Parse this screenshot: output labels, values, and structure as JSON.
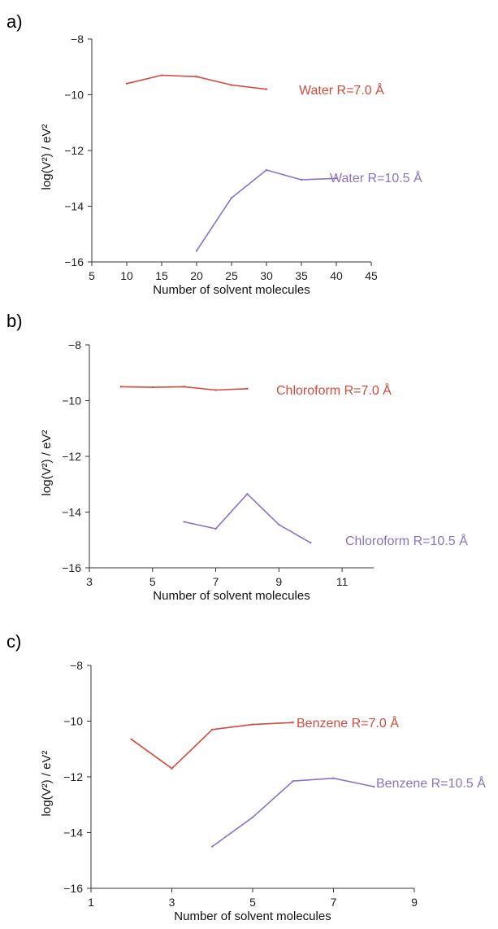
{
  "chart_data": [
    {
      "panel_label": "a)",
      "type": "line",
      "xlabel": "Number of solvent molecules",
      "ylabel": "log(V²) / eV²",
      "xlim": [
        5,
        45
      ],
      "ylim": [
        -16,
        -8
      ],
      "xticks": [
        "5",
        "10",
        "15",
        "20",
        "25",
        "30",
        "35",
        "40",
        "45"
      ],
      "yticks": [
        "-16",
        "-14",
        "-12",
        "-10",
        "-8"
      ],
      "grid": false,
      "series": [
        {
          "name": "Water R=7.0 Å",
          "color": "#d24b3e",
          "x": [
            10,
            15,
            20,
            25,
            30
          ],
          "y": [
            -9.6,
            -9.3,
            -9.35,
            -9.65,
            -9.8
          ]
        },
        {
          "name": "Water R=10.5 Å",
          "color": "#8b72c2",
          "x": [
            20,
            25,
            30,
            35,
            40
          ],
          "y": [
            -15.6,
            -13.7,
            -12.7,
            -13.05,
            -13.0
          ]
        }
      ]
    },
    {
      "panel_label": "b)",
      "type": "line",
      "xlabel": "Number of solvent molecules",
      "ylabel": "log(V²) / eV²",
      "xlim": [
        3,
        12
      ],
      "ylim": [
        -16,
        -8
      ],
      "xticks": [
        "3",
        "5",
        "7",
        "9",
        "11"
      ],
      "yticks": [
        "-16",
        "-14",
        "-12",
        "-10",
        "-8"
      ],
      "grid": false,
      "series": [
        {
          "name": "Chloroform R=7.0 Å",
          "color": "#d24b3e",
          "x": [
            4,
            5,
            6,
            7,
            8
          ],
          "y": [
            -9.5,
            -9.52,
            -9.5,
            -9.62,
            -9.57
          ]
        },
        {
          "name": "Chloroform R=10.5 Å",
          "color": "#8b72c2",
          "x": [
            6,
            7,
            8,
            9,
            10
          ],
          "y": [
            -14.35,
            -14.6,
            -13.35,
            -14.45,
            -15.1
          ]
        }
      ]
    },
    {
      "panel_label": "c)",
      "type": "line",
      "xlabel": "Number of solvent molecules",
      "ylabel": "log(V²) / eV²",
      "xlim": [
        1,
        9
      ],
      "ylim": [
        -16,
        -8
      ],
      "xticks": [
        "1",
        "3",
        "5",
        "7",
        "9"
      ],
      "yticks": [
        "-16",
        "-14",
        "-12",
        "-10",
        "-8"
      ],
      "grid": false,
      "series": [
        {
          "name": "Benzene R=7.0 Å",
          "color": "#d24b3e",
          "x": [
            2,
            3,
            4,
            5,
            6
          ],
          "y": [
            -10.65,
            -11.7,
            -10.3,
            -10.12,
            -10.05
          ]
        },
        {
          "name": "Benzene R=10.5 Å",
          "color": "#8b72c2",
          "x": [
            4,
            5,
            6,
            7,
            8
          ],
          "y": [
            -14.5,
            -13.45,
            -12.15,
            -12.05,
            -12.35
          ]
        }
      ]
    }
  ]
}
